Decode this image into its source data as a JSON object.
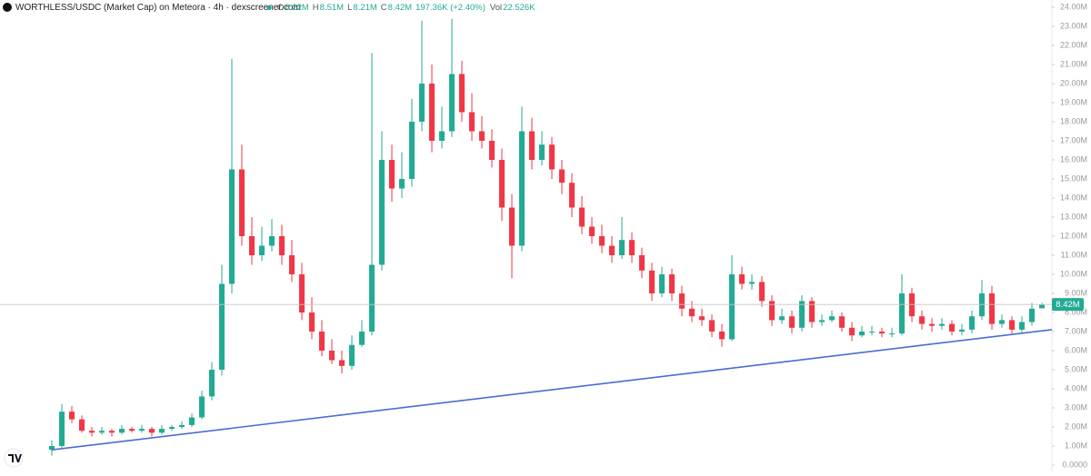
{
  "chart_data": {
    "type": "candlestick",
    "title": "WORTHLESS/USDC (Market Cap) on Meteora · 4h · dexscreener.com",
    "ohlc_legend": [
      {
        "key": "O",
        "value": 8220000.0,
        "label": "8.22M"
      },
      {
        "key": "H",
        "value": 8510000.0,
        "label": "8.51M"
      },
      {
        "key": "L",
        "value": 8210000.0,
        "label": "8.21M"
      },
      {
        "key": "C",
        "value": 8420000.0,
        "label": "8.42M"
      }
    ],
    "change": "197.36K (+2.40%)",
    "volume_key": "Vol",
    "volume": "22.526K",
    "last_price": {
      "value": 8420000.0,
      "label": "8.42M"
    },
    "up_color": "#22ab94",
    "down_color": "#f23645",
    "ylim": [
      0,
      24000000.0
    ],
    "yticks": [
      {
        "value": 0,
        "label": "0.0000"
      },
      {
        "value": 1000000.0,
        "label": "1.00M"
      },
      {
        "value": 2000000.0,
        "label": "2.00M"
      },
      {
        "value": 3000000.0,
        "label": "3.00M"
      },
      {
        "value": 4000000.0,
        "label": "4.00M"
      },
      {
        "value": 5000000.0,
        "label": "5.00M"
      },
      {
        "value": 6000000.0,
        "label": "6.00M"
      },
      {
        "value": 7000000.0,
        "label": "7.00M"
      },
      {
        "value": 8000000.0,
        "label": "8.00M"
      },
      {
        "value": 9000000.0,
        "label": "9.00M"
      },
      {
        "value": 10000000.0,
        "label": "10.00M"
      },
      {
        "value": 11000000.0,
        "label": "11.00M"
      },
      {
        "value": 12000000.0,
        "label": "12.00M"
      },
      {
        "value": 13000000.0,
        "label": "13.00M"
      },
      {
        "value": 14000000.0,
        "label": "14.00M"
      },
      {
        "value": 15000000.0,
        "label": "15.00M"
      },
      {
        "value": 16000000.0,
        "label": "16.00M"
      },
      {
        "value": 17000000.0,
        "label": "17.00M"
      },
      {
        "value": 18000000.0,
        "label": "18.00M"
      },
      {
        "value": 19000000.0,
        "label": "19.00M"
      },
      {
        "value": 20000000.0,
        "label": "20.00M"
      },
      {
        "value": 21000000.0,
        "label": "21.00M"
      },
      {
        "value": 22000000.0,
        "label": "22.00M"
      },
      {
        "value": 23000000.0,
        "label": "23.00M"
      },
      {
        "value": 24000000.0,
        "label": "24.00M"
      }
    ],
    "trendline": {
      "x": [
        0,
        100
      ],
      "y": [
        800000.0,
        7100000.0
      ],
      "color": "#4a6bd4"
    },
    "open": [
      800000.0,
      1000000.0,
      2800000.0,
      2400000.0,
      1800000.0,
      1700000.0,
      1800000.0,
      1700000.0,
      1900000.0,
      1800000.0,
      1900000.0,
      1700000.0,
      1900000.0,
      2000000.0,
      2100000.0,
      2500000.0,
      3600000.0,
      5000000.0,
      9500000.0,
      15500000.0,
      12000000.0,
      11000000.0,
      11500000.0,
      12000000.0,
      11000000.0,
      10000000.0,
      8000000.0,
      7000000.0,
      6000000.0,
      5500000.0,
      5200000.0,
      6300000.0,
      7000000.0,
      10500000.0,
      16000000.0,
      14500000.0,
      15000000.0,
      18000000.0,
      20000000.0,
      17000000.0,
      17500000.0,
      20500000.0,
      18500000.0,
      17500000.0,
      17000000.0,
      16000000.0,
      13500000.0,
      11500000.0,
      17500000.0,
      16000000.0,
      16800000.0,
      15500000.0,
      14800000.0,
      13500000.0,
      12500000.0,
      12000000.0,
      11500000.0,
      11000000.0,
      11800000.0,
      11000000.0,
      10200000.0,
      9000000.0,
      10000000.0,
      9000000.0,
      8200000.0,
      7800000.0,
      7600000.0,
      7000000.0,
      6600000.0,
      10000000.0,
      9500000.0,
      9600000.0,
      8600000.0,
      7600000.0,
      7800000.0,
      7200000.0,
      8600000.0,
      7500000.0,
      7600000.0,
      7800000.0,
      7200000.0,
      6800000.0,
      7000000.0,
      7000000.0,
      6900000.0,
      6900000.0,
      9000000.0,
      7800000.0,
      7400000.0,
      7300000.0,
      7400000.0,
      7000000.0,
      7100000.0,
      7800000.0,
      9000000.0,
      7400000.0,
      7600000.0,
      7100000.0,
      7500000.0,
      8220000.0
    ],
    "high": [
      1300000.0,
      3200000.0,
      3100000.0,
      2600000.0,
      2000000.0,
      2000000.0,
      1900000.0,
      2100000.0,
      2000000.0,
      2100000.0,
      2000000.0,
      2100000.0,
      2100000.0,
      2300000.0,
      2700000.0,
      3900000.0,
      5400000.0,
      10500000.0,
      21300000.0,
      16800000.0,
      13000000.0,
      12500000.0,
      12900000.0,
      12600000.0,
      11800000.0,
      10600000.0,
      8800000.0,
      7600000.0,
      6600000.0,
      6000000.0,
      6800000.0,
      7600000.0,
      21600000.0,
      17500000.0,
      16800000.0,
      16400000.0,
      19200000.0,
      23300000.0,
      21000000.0,
      18800000.0,
      23400000.0,
      21200000.0,
      19500000.0,
      18300000.0,
      17600000.0,
      16600000.0,
      14200000.0,
      18800000.0,
      18200000.0,
      17500000.0,
      17200000.0,
      16000000.0,
      15300000.0,
      14100000.0,
      13000000.0,
      12600000.0,
      12000000.0,
      13000000.0,
      12200000.0,
      11400000.0,
      10600000.0,
      10400000.0,
      10300000.0,
      9400000.0,
      8600000.0,
      8200000.0,
      7900000.0,
      7400000.0,
      11000000.0,
      10400000.0,
      10000000.0,
      9900000.0,
      8900000.0,
      8200000.0,
      8100000.0,
      8900000.0,
      8800000.0,
      7900000.0,
      8100000.0,
      8000000.0,
      7500000.0,
      7300000.0,
      7300000.0,
      7200000.0,
      7200000.0,
      10000000.0,
      9300000.0,
      8100000.0,
      7700000.0,
      7700000.0,
      7600000.0,
      7400000.0,
      8100000.0,
      9700000.0,
      9400000.0,
      7900000.0,
      7800000.0,
      7800000.0,
      8500000.0,
      8510000.0
    ],
    "low": [
      500000.0,
      900000.0,
      2200000.0,
      1700000.0,
      1500000.0,
      1600000.0,
      1500000.0,
      1600000.0,
      1700000.0,
      1700000.0,
      1500000.0,
      1600000.0,
      1800000.0,
      1900000.0,
      2000000.0,
      2400000.0,
      3400000.0,
      4700000.0,
      9000000.0,
      11500000.0,
      10500000.0,
      10700000.0,
      11200000.0,
      10500000.0,
      9600000.0,
      7600000.0,
      6600000.0,
      5700000.0,
      5300000.0,
      4800000.0,
      5000000.0,
      6200000.0,
      6800000.0,
      10200000.0,
      13800000.0,
      14000000.0,
      14600000.0,
      17500000.0,
      16400000.0,
      16600000.0,
      17200000.0,
      18000000.0,
      17000000.0,
      16600000.0,
      15600000.0,
      12800000.0,
      9800000.0,
      11200000.0,
      15500000.0,
      15700000.0,
      15000000.0,
      14200000.0,
      13000000.0,
      12100000.0,
      11600000.0,
      11100000.0,
      10600000.0,
      10800000.0,
      10600000.0,
      9800000.0,
      8600000.0,
      8800000.0,
      8600000.0,
      7800000.0,
      7500000.0,
      7300000.0,
      6700000.0,
      6200000.0,
      6500000.0,
      9200000.0,
      9200000.0,
      8300000.0,
      7300000.0,
      7400000.0,
      6900000.0,
      7000000.0,
      7200000.0,
      7300000.0,
      7500000.0,
      7000000.0,
      6500000.0,
      6700000.0,
      6800000.0,
      6700000.0,
      6700000.0,
      6800000.0,
      7500000.0,
      7100000.0,
      7000000.0,
      7100000.0,
      6800000.0,
      6800000.0,
      6900000.0,
      7600000.0,
      7100000.0,
      7200000.0,
      6900000.0,
      6900000.0,
      7300000.0,
      8210000.0
    ],
    "close": [
      1000000.0,
      2800000.0,
      2400000.0,
      1800000.0,
      1700000.0,
      1800000.0,
      1700000.0,
      1900000.0,
      1800000.0,
      1900000.0,
      1700000.0,
      1900000.0,
      2000000.0,
      2100000.0,
      2500000.0,
      3600000.0,
      5000000.0,
      9500000.0,
      15500000.0,
      12000000.0,
      11000000.0,
      11500000.0,
      12000000.0,
      11000000.0,
      10000000.0,
      8000000.0,
      7000000.0,
      6000000.0,
      5500000.0,
      5200000.0,
      6300000.0,
      7000000.0,
      10500000.0,
      16000000.0,
      14500000.0,
      15000000.0,
      18000000.0,
      20000000.0,
      17000000.0,
      17500000.0,
      20500000.0,
      18500000.0,
      17500000.0,
      17000000.0,
      16000000.0,
      13500000.0,
      11500000.0,
      17500000.0,
      16000000.0,
      16800000.0,
      15500000.0,
      14800000.0,
      13500000.0,
      12500000.0,
      12000000.0,
      11500000.0,
      11000000.0,
      11800000.0,
      11000000.0,
      10200000.0,
      9000000.0,
      10000000.0,
      9000000.0,
      8200000.0,
      7800000.0,
      7600000.0,
      7000000.0,
      6600000.0,
      10000000.0,
      9500000.0,
      9600000.0,
      8600000.0,
      7600000.0,
      7800000.0,
      7200000.0,
      8600000.0,
      7500000.0,
      7600000.0,
      7800000.0,
      7200000.0,
      6800000.0,
      7000000.0,
      7000000.0,
      6900000.0,
      6900000.0,
      9000000.0,
      7800000.0,
      7400000.0,
      7300000.0,
      7400000.0,
      7000000.0,
      7100000.0,
      7800000.0,
      9000000.0,
      7400000.0,
      7600000.0,
      7100000.0,
      7500000.0,
      8200000.0,
      8420000.0
    ]
  }
}
